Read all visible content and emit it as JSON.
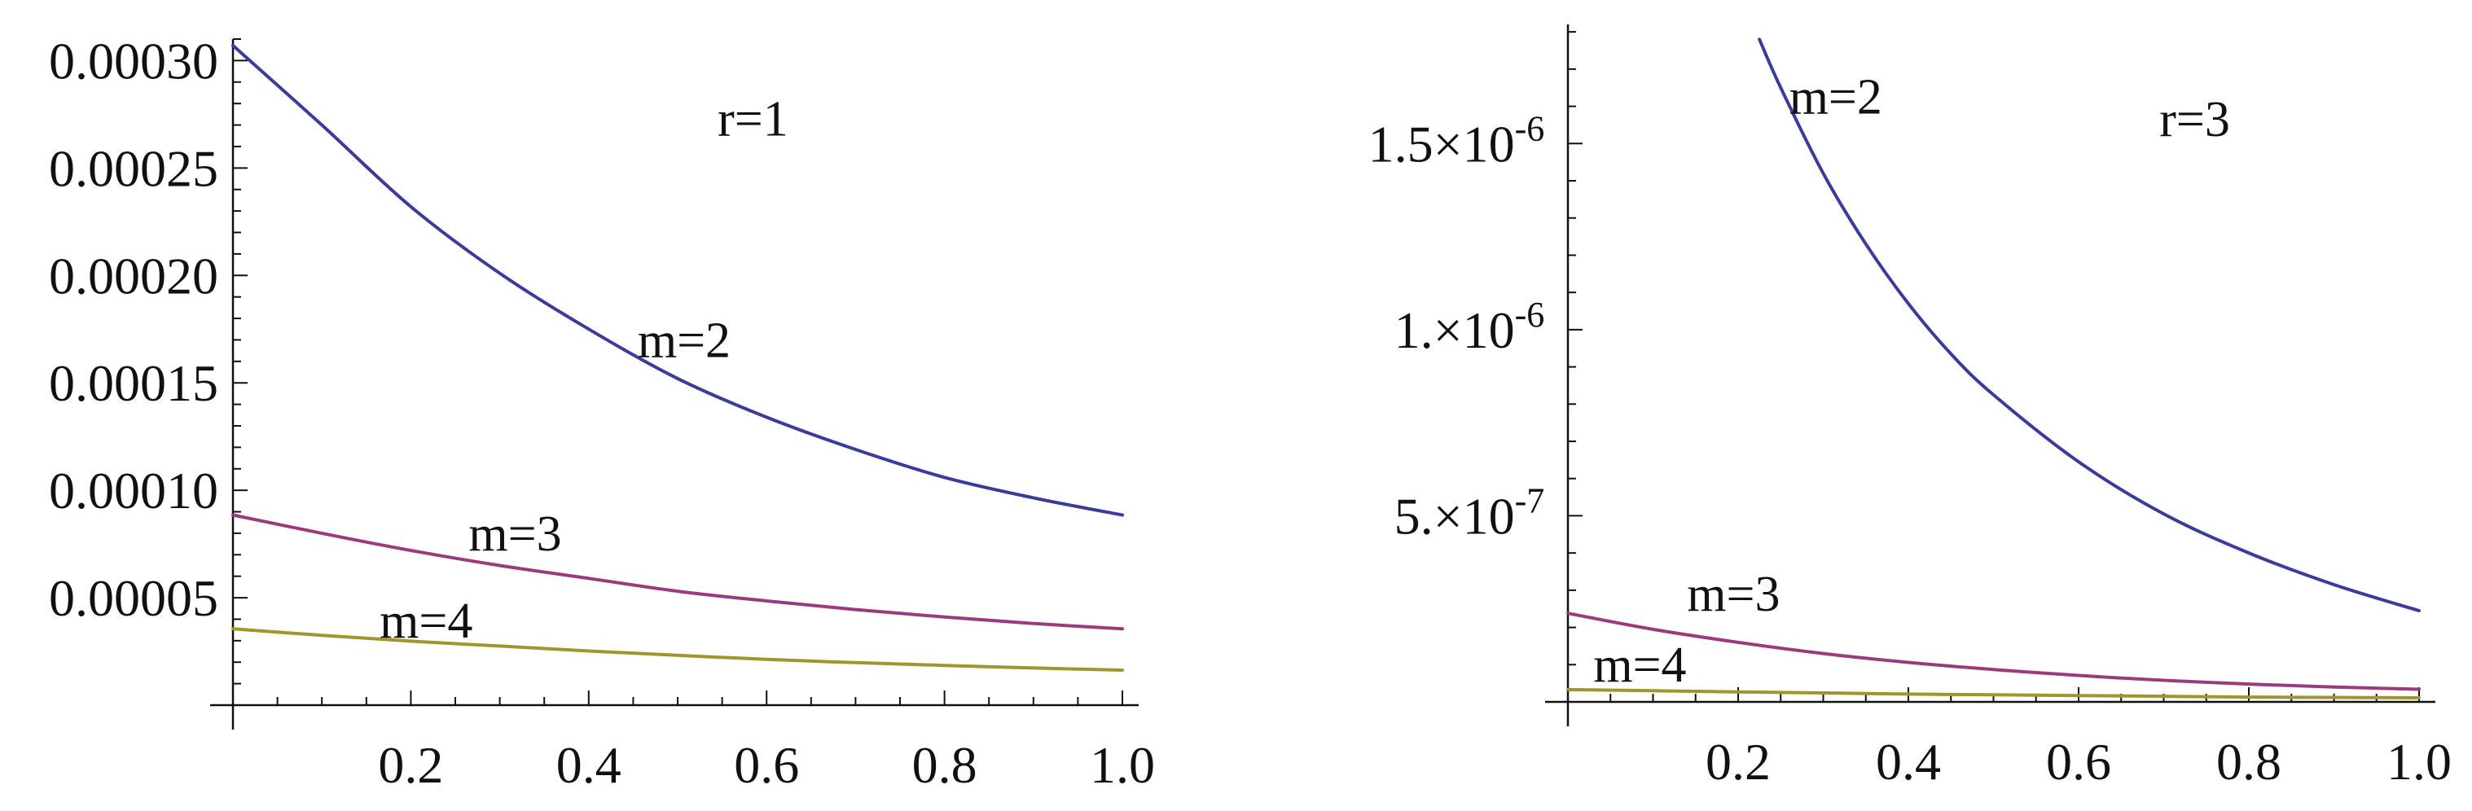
{
  "colors": {
    "m2": "#3b3b9a",
    "m3": "#9b3a7c",
    "m4": "#a0962f",
    "axis": "#111111"
  },
  "chart_data": [
    {
      "type": "line",
      "annotation": "r=1",
      "xlim": [
        0,
        1.0
      ],
      "ylim": [
        0,
        0.00031
      ],
      "x_ticks": [
        0.2,
        0.4,
        0.6,
        0.8,
        1.0
      ],
      "x_tick_labels": [
        "0.2",
        "0.4",
        "0.6",
        "0.8",
        "1.0"
      ],
      "y_ticks": [
        5e-05,
        0.0001,
        0.00015,
        0.0002,
        0.00025,
        0.0003
      ],
      "y_tick_labels": [
        "0.00005",
        "0.00010",
        "0.00015",
        "0.00020",
        "0.00025",
        "0.00030"
      ],
      "series": [
        {
          "name": "m=2",
          "color_key": "m2",
          "x": [
            0,
            0.1,
            0.2,
            0.3,
            0.4,
            0.5,
            0.6,
            0.7,
            0.8,
            0.9,
            1.0
          ],
          "y": [
            0.000307,
            0.00027,
            0.000232,
            0.000201,
            0.000175,
            0.000152,
            0.000134,
            0.000119,
            0.000106,
            9.65e-05,
            8.85e-05
          ]
        },
        {
          "name": "m=3",
          "color_key": "m3",
          "x": [
            0,
            0.1,
            0.2,
            0.3,
            0.4,
            0.5,
            0.6,
            0.7,
            0.8,
            0.9,
            1.0
          ],
          "y": [
            8.85e-05,
            8e-05,
            7.2e-05,
            6.5e-05,
            5.9e-05,
            5.3e-05,
            4.85e-05,
            4.45e-05,
            4.1e-05,
            3.8e-05,
            3.55e-05
          ]
        },
        {
          "name": "m=4",
          "color_key": "m4",
          "x": [
            0,
            0.1,
            0.2,
            0.3,
            0.4,
            0.5,
            0.6,
            0.7,
            0.8,
            0.9,
            1.0
          ],
          "y": [
            3.55e-05,
            3.25e-05,
            2.98e-05,
            2.75e-05,
            2.52e-05,
            2.32e-05,
            2.13e-05,
            1.98e-05,
            1.85e-05,
            1.73e-05,
            1.63e-05
          ]
        }
      ],
      "labels": [
        {
          "text": "m=2",
          "x": 0.455,
          "y": 0.000162
        },
        {
          "text": "m=3",
          "x": 0.265,
          "y": 7.2e-05
        },
        {
          "text": "m=4",
          "x": 0.165,
          "y": 3.15e-05
        }
      ],
      "annotation_pos": {
        "x": 0.545,
        "y": 0.000265
      }
    },
    {
      "type": "line",
      "annotation": "r=3",
      "xlim": [
        0,
        1.0
      ],
      "ylim": [
        0,
        1.82e-06
      ],
      "x_ticks": [
        0.2,
        0.4,
        0.6,
        0.8,
        1.0
      ],
      "x_tick_labels": [
        "0.2",
        "0.4",
        "0.6",
        "0.8",
        "1.0"
      ],
      "y_ticks": [
        5e-07,
        1e-06,
        1.5e-06
      ],
      "y_tick_labels": [
        {
          "mant": "5.",
          "exp": "-7"
        },
        {
          "mant": "1.",
          "exp": "-6"
        },
        {
          "mant": "1.5",
          "exp": "-6"
        }
      ],
      "series": [
        {
          "name": "m=2",
          "color_key": "m2",
          "x": [
            0.225,
            0.25,
            0.3,
            0.35,
            0.4,
            0.45,
            0.5,
            0.6,
            0.7,
            0.8,
            0.9,
            1.0
          ],
          "y": [
            1.78e-06,
            1.65e-06,
            1.42e-06,
            1.23e-06,
            1.07e-06,
            9.35e-07,
            8.25e-07,
            6.45e-07,
            5.05e-07,
            4e-07,
            3.15e-07,
            2.45e-07
          ]
        },
        {
          "name": "m=3",
          "color_key": "m3",
          "x": [
            0,
            0.1,
            0.2,
            0.3,
            0.4,
            0.5,
            0.6,
            0.7,
            0.8,
            0.9,
            1.0
          ],
          "y": [
            2.38e-07,
            1.95e-07,
            1.6e-07,
            1.3e-07,
            1.06e-07,
            8.7e-08,
            7.1e-08,
            5.8e-08,
            4.8e-08,
            4e-08,
            3.4e-08
          ]
        },
        {
          "name": "m=4",
          "color_key": "m4",
          "x": [
            0,
            0.1,
            0.2,
            0.3,
            0.4,
            0.5,
            0.6,
            0.7,
            0.8,
            0.9,
            1.0
          ],
          "y": [
            3.3e-08,
            3e-08,
            2.7e-08,
            2.4e-08,
            2.1e-08,
            1.9e-08,
            1.7e-08,
            1.5e-08,
            1.3e-08,
            1.2e-08,
            1.1e-08
          ]
        }
      ],
      "labels": [
        {
          "text": "m=2",
          "x": 0.26,
          "y": 1.58e-06
        },
        {
          "text": "m=3",
          "x": 0.14,
          "y": 2.45e-07
        },
        {
          "text": "m=4",
          "x": 0.03,
          "y": 5.5e-08
        }
      ],
      "annotation_pos": {
        "x": 0.695,
        "y": 1.52e-06
      }
    }
  ]
}
